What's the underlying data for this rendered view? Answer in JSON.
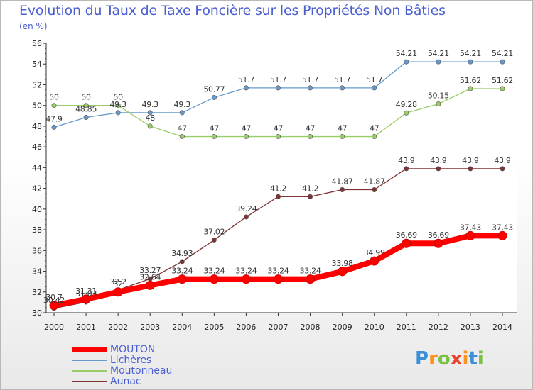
{
  "title": "Evolution du Taux de Taxe Foncière sur les Propriétés Non Bâties",
  "unit_label": "(en %)",
  "brand": {
    "name": "Proxiti",
    "letters": [
      "P",
      "r",
      "o",
      "x",
      "i",
      "t",
      "i"
    ],
    "colors": [
      "#3a8fd6",
      "#f7931e",
      "#7ac143",
      "#e8442e",
      "#f7931e",
      "#3a8fd6",
      "#7ac143"
    ]
  },
  "chart_data": {
    "type": "line",
    "x": [
      2000,
      2001,
      2002,
      2003,
      2004,
      2005,
      2006,
      2007,
      2008,
      2009,
      2010,
      2011,
      2012,
      2013,
      2014
    ],
    "ylim": [
      30,
      56
    ],
    "yticks": [
      30,
      32,
      34,
      36,
      38,
      40,
      42,
      44,
      46,
      48,
      50,
      52,
      54,
      56
    ],
    "grid": false,
    "legend": "bottom-left",
    "series": [
      {
        "name": "MOUTON",
        "color": "#ff0000",
        "labels": [
          "30.7",
          "31.31",
          "32",
          "32.64",
          "33.24",
          "33.24",
          "33.24",
          "33.24",
          "33.24",
          "33.98",
          "34.99",
          "36.69",
          "36.69",
          "37.43",
          "37.43"
        ],
        "values": [
          30.7,
          31.31,
          32.0,
          32.64,
          33.24,
          33.24,
          33.24,
          33.24,
          33.24,
          33.98,
          34.99,
          36.69,
          36.69,
          37.43,
          37.43
        ]
      },
      {
        "name": "Lichères",
        "color": "#6699cc",
        "labels": [
          "47.9",
          "48.85",
          "49.3",
          "49.3",
          "49.3",
          "50.77",
          "51.7",
          "51.7",
          "51.7",
          "51.7",
          "51.7",
          "54.21",
          "54.21",
          "54.21",
          "54.21"
        ],
        "values": [
          47.9,
          48.85,
          49.3,
          49.3,
          49.3,
          50.77,
          51.7,
          51.7,
          51.7,
          51.7,
          51.7,
          54.21,
          54.21,
          54.21,
          54.21
        ]
      },
      {
        "name": "Moutonneau",
        "color": "#99cc66",
        "labels": [
          "50",
          "50",
          "50",
          "48",
          "47",
          "47",
          "47",
          "47",
          "47",
          "47",
          "47",
          "49.28",
          "50.15",
          "51.62",
          "51.62"
        ],
        "values": [
          50,
          50,
          50,
          48,
          47,
          47,
          47,
          47,
          47,
          47,
          47,
          49.28,
          50.15,
          51.62,
          51.62
        ]
      },
      {
        "name": "Aunac",
        "color": "#803333",
        "labels": [
          "30.42",
          "31.03",
          "32.2",
          "33.27",
          "34.93",
          "37.02",
          "39.24",
          "41.2",
          "41.2",
          "41.87",
          "41.87",
          "43.9",
          "43.9",
          "43.9",
          "43.9"
        ],
        "values": [
          30.42,
          31.03,
          32.2,
          33.27,
          34.93,
          37.02,
          39.24,
          41.2,
          41.2,
          41.87,
          41.87,
          43.9,
          43.9,
          43.9,
          43.9
        ]
      }
    ]
  }
}
